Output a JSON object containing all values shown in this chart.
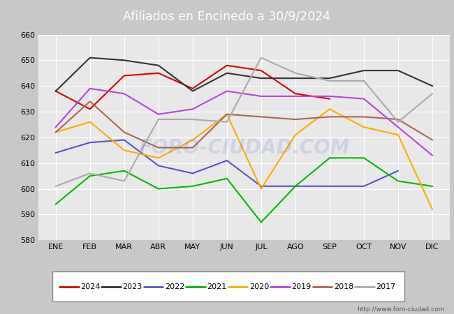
{
  "title": "Afiliados en Encinedo a 30/9/2024",
  "months": [
    "ENE",
    "FEB",
    "MAR",
    "ABR",
    "MAY",
    "JUN",
    "JUL",
    "AGO",
    "SEP",
    "OCT",
    "NOV",
    "DIC"
  ],
  "ylim": [
    580,
    660
  ],
  "yticks": [
    580,
    590,
    600,
    610,
    620,
    630,
    640,
    650,
    660
  ],
  "series": {
    "2024": {
      "color": "#dd0000",
      "values": [
        638,
        631,
        644,
        645,
        639,
        648,
        646,
        637,
        635,
        null,
        null,
        null
      ]
    },
    "2023": {
      "color": "#333333",
      "values": [
        638,
        651,
        650,
        648,
        638,
        645,
        643,
        643,
        643,
        646,
        646,
        640
      ]
    },
    "2022": {
      "color": "#5555cc",
      "values": [
        614,
        618,
        619,
        609,
        606,
        611,
        601,
        601,
        601,
        601,
        607,
        null
      ]
    },
    "2021": {
      "color": "#00bb00",
      "values": [
        594,
        605,
        607,
        600,
        601,
        604,
        587,
        601,
        612,
        612,
        603,
        601
      ]
    },
    "2020": {
      "color": "#ffaa00",
      "values": [
        622,
        626,
        615,
        612,
        619,
        629,
        600,
        621,
        631,
        624,
        621,
        592
      ]
    },
    "2019": {
      "color": "#bb44dd",
      "values": [
        624,
        639,
        637,
        629,
        631,
        638,
        636,
        636,
        636,
        635,
        624,
        613
      ]
    },
    "2018": {
      "color": "#aa6655",
      "values": [
        622,
        634,
        622,
        616,
        616,
        629,
        628,
        627,
        628,
        628,
        627,
        619
      ]
    },
    "2017": {
      "color": "#aaaaaa",
      "values": [
        601,
        606,
        603,
        627,
        627,
        626,
        651,
        645,
        642,
        642,
        626,
        637
      ]
    }
  },
  "series_order": [
    "2024",
    "2023",
    "2022",
    "2021",
    "2020",
    "2019",
    "2018",
    "2017"
  ],
  "watermark": "FORO-CIUDAD.COM",
  "url": "http://www.foro-ciudad.com",
  "title_bg": "#4472c4",
  "title_fg": "#ffffff",
  "fig_bg": "#c8c8c8",
  "plot_bg": "#e8e8e8",
  "grid_color": "#ffffff",
  "legend_bg": "#ffffff",
  "legend_border": "#888888"
}
